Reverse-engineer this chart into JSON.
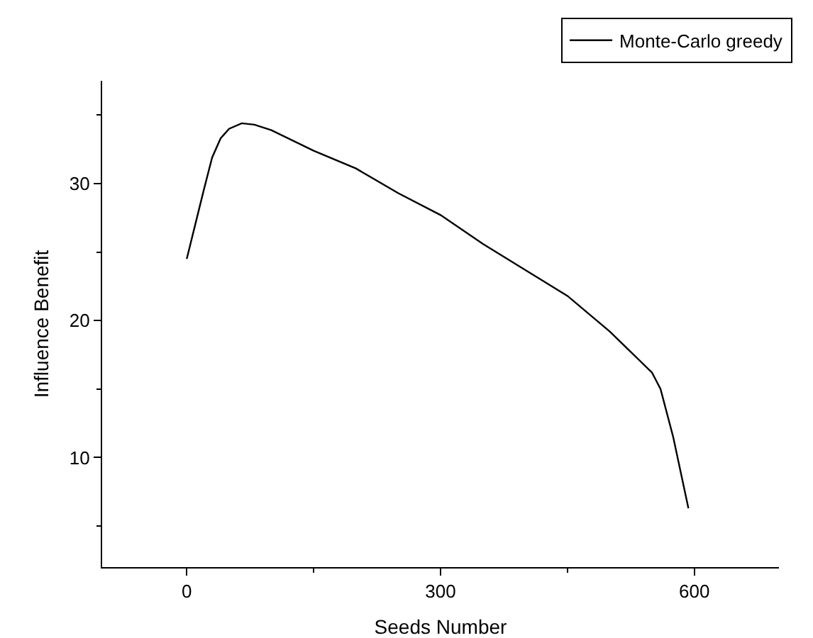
{
  "chart_data": {
    "type": "line",
    "xlabel": "Seeds Number",
    "ylabel": "Influence Benefit",
    "series": [
      {
        "name": "Monte-Carlo greedy",
        "color": "#000000",
        "x": [
          0,
          10,
          20,
          30,
          40,
          50,
          65,
          80,
          100,
          150,
          200,
          250,
          300,
          350,
          400,
          450,
          500,
          550,
          560,
          575,
          593
        ],
        "values": [
          24.5,
          27,
          29.5,
          31.9,
          33.3,
          34,
          34.4,
          34.3,
          33.9,
          32.4,
          31.1,
          29.3,
          27.7,
          25.6,
          23.7,
          21.8,
          19.2,
          16.2,
          15,
          11.5,
          6.3
        ]
      }
    ],
    "xlim": [
      -100,
      700
    ],
    "xticks": [
      0,
      300,
      600
    ],
    "ylim": [
      2,
      37.5
    ],
    "yticks": [
      10,
      20,
      30
    ],
    "grid": false,
    "legend": "top right",
    "marker": "none",
    "line_style": "solid"
  }
}
